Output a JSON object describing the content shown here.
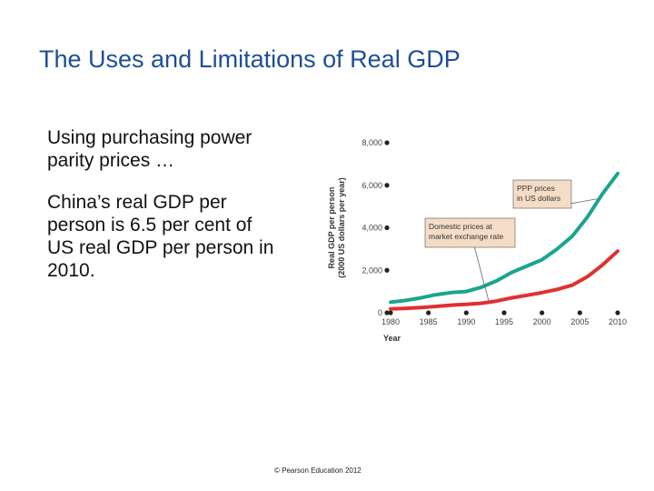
{
  "slide": {
    "title": "The Uses and Limitations of Real GDP",
    "paragraphs": [
      "Using purchasing power parity prices …",
      "China’s real GDP per person is 6.5 per cent of US real GDP per person in 2010."
    ],
    "footer": "© Pearson Education 2012"
  },
  "chart_data": {
    "type": "line",
    "xlabel": "Year",
    "ylabel_lines": [
      "Real GDP per person",
      "(2000 US dollars per year)"
    ],
    "xlim": [
      1980,
      2010
    ],
    "ylim": [
      0,
      8000
    ],
    "x_ticks": [
      "1980",
      "1985",
      "1990",
      "1995",
      "2000",
      "2005",
      "2010"
    ],
    "y_ticks": [
      "0",
      "2,000",
      "4,000",
      "6,000",
      "8,000"
    ],
    "x_tick_values": [
      1980,
      1985,
      1990,
      1995,
      2000,
      2005,
      2010
    ],
    "y_tick_values": [
      0,
      2000,
      4000,
      6000,
      8000
    ],
    "x": [
      1980,
      1982,
      1984,
      1986,
      1988,
      1990,
      1992,
      1994,
      1996,
      1998,
      2000,
      2002,
      2004,
      2006,
      2008,
      2010
    ],
    "series": [
      {
        "color": "#1aa58e",
        "values": [
          500,
          580,
          700,
          850,
          950,
          1000,
          1200,
          1500,
          1900,
          2200,
          2500,
          3000,
          3600,
          4500,
          5600,
          6550
        ]
      },
      {
        "color": "#e03030",
        "values": [
          180,
          210,
          250,
          300,
          360,
          400,
          450,
          550,
          700,
          820,
          950,
          1100,
          1300,
          1700,
          2250,
          2900
        ]
      }
    ],
    "annotations": [
      {
        "label_lines": [
          "PPP prices",
          "in US dollars"
        ],
        "target_series": 0,
        "target_x": 2007.6
      },
      {
        "label_lines": [
          "Domestic prices at",
          "market exchange rate"
        ],
        "target_series": 1,
        "target_x": 1993
      }
    ],
    "annotation_fill": "#f5dcc6",
    "dot_color": "#222222"
  }
}
